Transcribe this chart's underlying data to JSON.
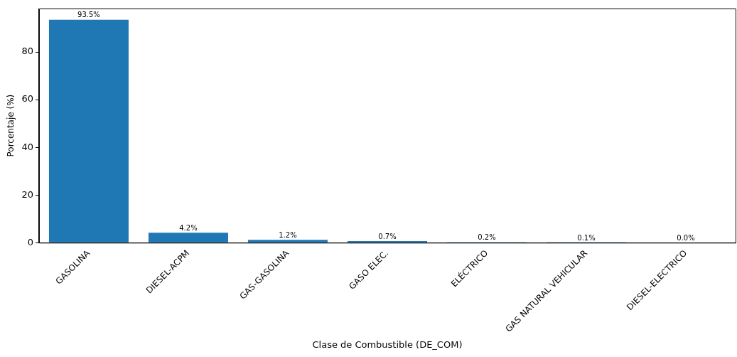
{
  "chart_data": {
    "type": "bar",
    "xlabel": "Clase de Combustible (DE_COM)",
    "ylabel": "Porcentaje (%)",
    "categories": [
      "GASOLINA",
      "DIESEL-ACPM",
      "GAS-GASOLINA",
      "GASO ELEC.",
      "ELÉCTRICO",
      "GAS NATURAL VEHICULAR",
      "DIESEL-ELECTRICO"
    ],
    "values": [
      93.5,
      4.2,
      1.2,
      0.7,
      0.2,
      0.1,
      0.0
    ],
    "value_labels": [
      "93.5%",
      "4.2%",
      "1.2%",
      "0.7%",
      "0.2%",
      "0.1%",
      "0.0%"
    ],
    "color": "#1f77b4",
    "ylim": [
      0,
      98.2
    ],
    "yticks": [
      0,
      20,
      40,
      60,
      80
    ],
    "grid": false,
    "legend": false
  }
}
